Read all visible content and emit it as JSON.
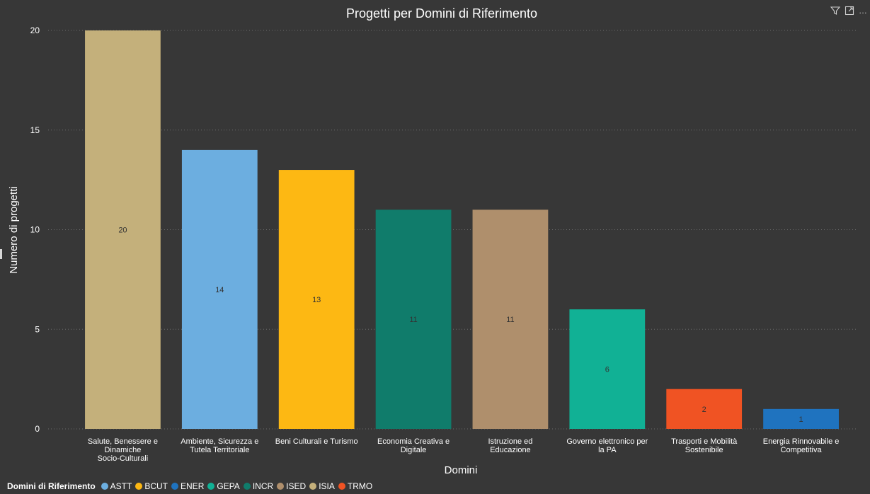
{
  "chart_data": {
    "type": "bar",
    "title": "Progetti per Domini di Riferimento",
    "xlabel": "Domini",
    "ylabel": "Numero di progetti",
    "ylim": [
      0,
      20
    ],
    "yticks": [
      0,
      5,
      10,
      15,
      20
    ],
    "grid": true,
    "categories": [
      "Salute, Benessere e Dinamiche Socio-Culturali",
      "Ambiente, Sicurezza e Tutela Territoriale",
      "Beni Culturali e Turismo",
      "Economia Creativa e Digitale",
      "Istruzione ed Educazione",
      "Governo elettronico per la PA",
      "Trasporti e Mobilità Sostenibile",
      "Energia Rinnovabile e Competitiva"
    ],
    "category_lines": [
      [
        "Salute, Benessere e",
        "Dinamiche",
        "Socio-Culturali"
      ],
      [
        "Ambiente, Sicurezza e",
        "Tutela Territoriale"
      ],
      [
        "Beni Culturali e Turismo"
      ],
      [
        "Economia Creativa e",
        "Digitale"
      ],
      [
        "Istruzione ed",
        "Educazione"
      ],
      [
        "Governo elettronico per",
        "la PA"
      ],
      [
        "Trasporti e Mobilità",
        "Sostenibile"
      ],
      [
        "Energia Rinnovabile e",
        "Competitiva"
      ]
    ],
    "values": [
      20,
      14,
      13,
      11,
      11,
      6,
      2,
      1
    ],
    "bar_colors": [
      "#C4B07B",
      "#6CAEE0",
      "#FDB813",
      "#107C6B",
      "#AF8F6C",
      "#11B195",
      "#F05323",
      "#1F73BF"
    ],
    "legend": {
      "title": "Domini di Riferimento",
      "position": "bottom-left",
      "items": [
        {
          "label": "ASTT",
          "color": "#6CAEE0"
        },
        {
          "label": "BCUT",
          "color": "#FDB813"
        },
        {
          "label": "ENER",
          "color": "#1F73BF"
        },
        {
          "label": "GEPA",
          "color": "#11B195"
        },
        {
          "label": "INCR",
          "color": "#107C6B"
        },
        {
          "label": "ISED",
          "color": "#AF8F6C"
        },
        {
          "label": "ISIA",
          "color": "#C4B07B"
        },
        {
          "label": "TRMO",
          "color": "#F05323"
        }
      ]
    }
  },
  "toolbar": {
    "icons": [
      "filter-icon",
      "focus-mode-icon",
      "more-options-icon"
    ]
  }
}
